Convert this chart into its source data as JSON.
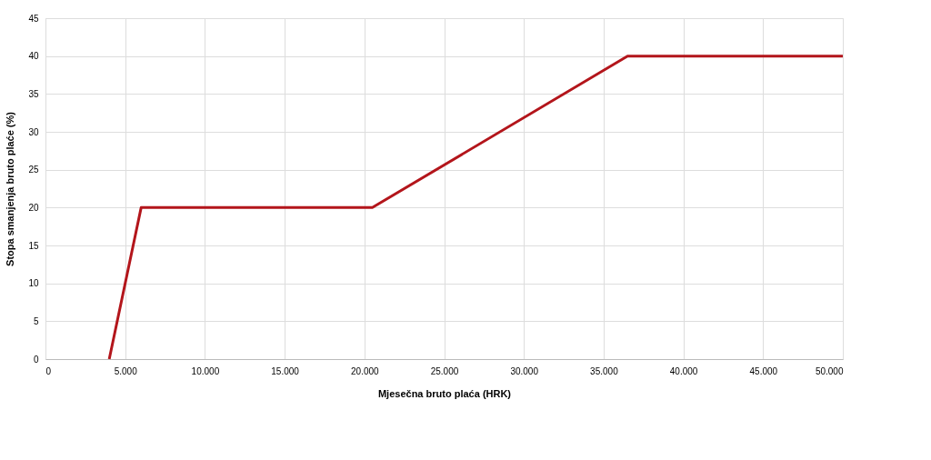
{
  "chart_data": {
    "type": "line",
    "xlabel": "Mjesečna bruto plaća (HRK)",
    "ylabel": "Stopa smanjenja bruto plaće (%)",
    "x": [
      4000,
      6000,
      20500,
      36500,
      50000
    ],
    "series": [
      {
        "color": "#b3151b",
        "values": [
          0,
          20,
          20,
          40,
          40
        ]
      }
    ],
    "xlim": [
      0,
      50000
    ],
    "ylim": [
      0,
      45
    ],
    "xticks": [
      0,
      {
        "value": 5000,
        "label": "5.000"
      },
      {
        "value": 10000,
        "label": "10.000"
      },
      {
        "value": 15000,
        "label": "15.000"
      },
      {
        "value": 20000,
        "label": "20.000"
      },
      {
        "value": 25000,
        "label": "25.000"
      },
      {
        "value": 30000,
        "label": "30.000"
      },
      {
        "value": 35000,
        "label": "35.000"
      },
      {
        "value": 40000,
        "label": "40.000"
      },
      {
        "value": 45000,
        "label": "45.000"
      },
      {
        "value": 50000,
        "label": "50.000"
      }
    ],
    "yticks": [
      0,
      5,
      10,
      15,
      20,
      25,
      30,
      35,
      40,
      45
    ],
    "grid": true,
    "marker": "none",
    "line_style": "solid"
  }
}
